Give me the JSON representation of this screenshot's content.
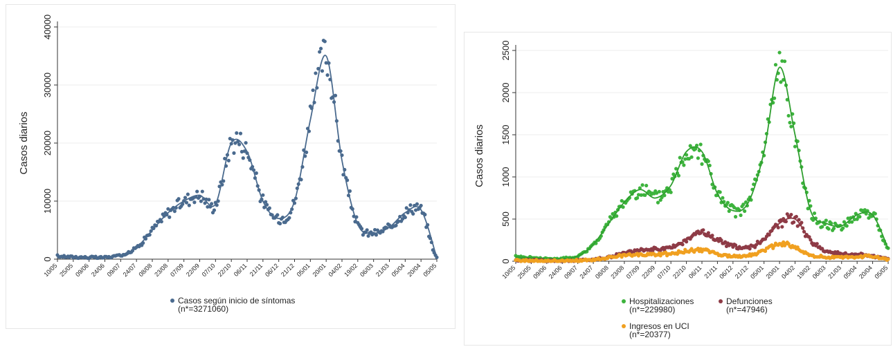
{
  "chart_data": [
    {
      "type": "scatter",
      "ylabel": "Casos diarios",
      "xlabel": "",
      "ylim": [
        0,
        40000
      ],
      "yticks": [
        "0",
        "10000",
        "20000",
        "30000",
        "40000"
      ],
      "x_tick_labels": [
        "10/05",
        "25/05",
        "09/06",
        "24/06",
        "09/07",
        "24/07",
        "08/08",
        "23/08",
        "07/09",
        "22/09",
        "07/10",
        "22/10",
        "06/11",
        "21/11",
        "06/12",
        "21/12",
        "05/01",
        "20/01",
        "04/02",
        "19/02",
        "06/03",
        "21/03",
        "05/04",
        "20/04",
        "05/05"
      ],
      "grid": true,
      "legend": "bottom",
      "series": [
        {
          "name": "Casos según inicio de síntomas",
          "note": "(n*=3271060)",
          "color": "#4a6a8e",
          "smooth_line": true,
          "x": [
            "10/05",
            "25/05",
            "09/06",
            "24/06",
            "09/07",
            "24/07",
            "08/08",
            "23/08",
            "07/09",
            "22/09",
            "07/10",
            "22/10",
            "06/11",
            "21/11",
            "06/12",
            "21/12",
            "05/01",
            "20/01",
            "04/02",
            "19/02",
            "06/03",
            "21/03",
            "05/04",
            "20/04",
            "05/05"
          ],
          "values": [
            500,
            400,
            300,
            300,
            700,
            2000,
            5000,
            8000,
            10000,
            11000,
            9500,
            20000,
            18500,
            10000,
            7000,
            10000,
            24000,
            35000,
            17000,
            6000,
            4500,
            5500,
            8000,
            8500,
            200
          ]
        }
      ]
    },
    {
      "type": "scatter",
      "ylabel": "Casos diarios",
      "xlabel": "",
      "ylim": [
        0,
        2500
      ],
      "yticks": [
        "0",
        "500",
        "1000",
        "1500",
        "2000",
        "2500"
      ],
      "x_tick_labels": [
        "10/05",
        "25/05",
        "09/06",
        "24/06",
        "09/07",
        "24/07",
        "08/08",
        "23/08",
        "07/09",
        "22/09",
        "07/10",
        "22/10",
        "06/11",
        "21/11",
        "06/12",
        "21/12",
        "05/01",
        "20/01",
        "04/02",
        "19/02",
        "06/03",
        "21/03",
        "05/04",
        "20/04",
        "05/05"
      ],
      "grid": true,
      "legend": "bottom",
      "series": [
        {
          "name": "Hospitalizaciones",
          "note": "(n*=229980)",
          "color": "#3db33d",
          "x": [
            "10/05",
            "25/05",
            "09/06",
            "24/06",
            "09/07",
            "24/07",
            "08/08",
            "23/08",
            "07/09",
            "22/09",
            "07/10",
            "22/10",
            "06/11",
            "21/11",
            "06/12",
            "21/12",
            "05/01",
            "20/01",
            "04/02",
            "19/02",
            "06/03",
            "21/03",
            "05/04",
            "20/04",
            "05/05"
          ],
          "values": [
            50,
            40,
            30,
            30,
            60,
            200,
            450,
            700,
            850,
            750,
            900,
            1300,
            1300,
            800,
            600,
            700,
            1300,
            2300,
            1500,
            600,
            450,
            420,
            550,
            550,
            150
          ]
        },
        {
          "name": "Defunciones",
          "note": "(n*=47946)",
          "color": "#8e3b46",
          "x": [
            "10/05",
            "25/05",
            "09/06",
            "24/06",
            "09/07",
            "24/07",
            "08/08",
            "23/08",
            "07/09",
            "22/09",
            "07/10",
            "22/10",
            "06/11",
            "21/11",
            "06/12",
            "21/12",
            "05/01",
            "20/01",
            "04/02",
            "19/02",
            "06/03",
            "21/03",
            "05/04",
            "20/04",
            "05/05"
          ],
          "values": [
            10,
            8,
            5,
            5,
            8,
            20,
            50,
            100,
            130,
            140,
            160,
            250,
            340,
            250,
            180,
            170,
            250,
            450,
            500,
            250,
            120,
            90,
            80,
            60,
            30
          ]
        },
        {
          "name": "Ingresos en UCI",
          "note": "(n*=20377)",
          "color": "#f0a020",
          "x": [
            "10/05",
            "25/05",
            "09/06",
            "24/06",
            "09/07",
            "24/07",
            "08/08",
            "23/08",
            "07/09",
            "22/09",
            "07/10",
            "22/10",
            "06/11",
            "21/11",
            "06/12",
            "21/12",
            "05/01",
            "20/01",
            "04/02",
            "19/02",
            "06/03",
            "21/03",
            "05/04",
            "20/04",
            "05/05"
          ],
          "values": [
            8,
            5,
            4,
            4,
            8,
            20,
            45,
            70,
            80,
            80,
            90,
            120,
            130,
            90,
            60,
            70,
            130,
            210,
            160,
            70,
            50,
            45,
            55,
            55,
            20
          ]
        }
      ]
    }
  ]
}
